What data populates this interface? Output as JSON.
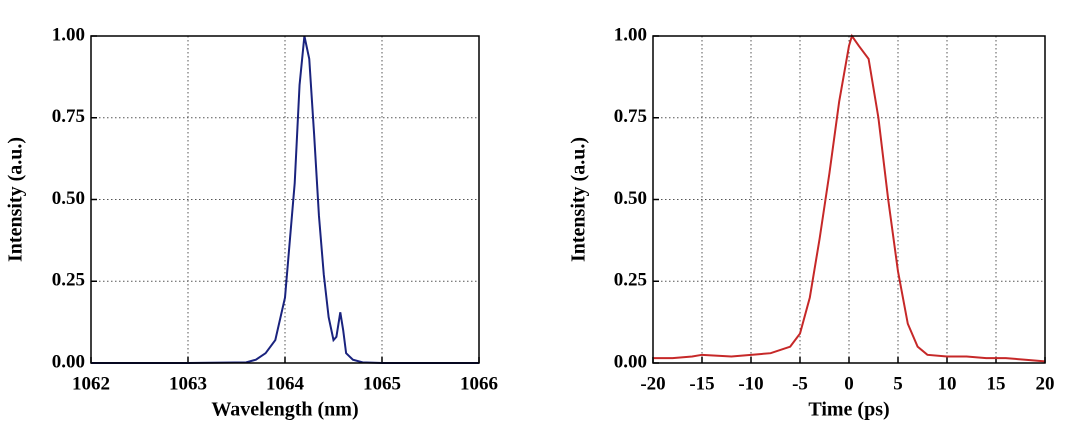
{
  "chart_data": [
    {
      "type": "line",
      "xlabel": "Wavelength (nm)",
      "ylabel": "Intensity (a.u.)",
      "x": [
        1062,
        1063,
        1063.6,
        1063.7,
        1063.8,
        1063.9,
        1064.0,
        1064.1,
        1064.15,
        1064.2,
        1064.25,
        1064.3,
        1064.35,
        1064.4,
        1064.45,
        1064.5,
        1064.53,
        1064.57,
        1064.6,
        1064.63,
        1064.7,
        1064.8,
        1065,
        1066
      ],
      "values": [
        0,
        0,
        0.002,
        0.01,
        0.03,
        0.07,
        0.2,
        0.55,
        0.85,
        1.0,
        0.93,
        0.7,
        0.45,
        0.27,
        0.14,
        0.07,
        0.08,
        0.155,
        0.1,
        0.03,
        0.01,
        0.002,
        0,
        0
      ],
      "color": "#1a237e",
      "xlim": [
        1062,
        1066
      ],
      "xticks": [
        1062,
        1063,
        1064,
        1065,
        1066
      ],
      "ylim": [
        0,
        1
      ],
      "yticks": [
        {
          "value": 0,
          "label": "0.00"
        },
        {
          "value": 0.25,
          "label": "0.25"
        },
        {
          "value": 0.5,
          "label": "0.50"
        },
        {
          "value": 0.75,
          "label": "0.75"
        },
        {
          "value": 1,
          "label": "1.00"
        }
      ],
      "grid": true
    },
    {
      "type": "line",
      "xlabel": "Time (ps)",
      "ylabel": "Intensity (a.u.)",
      "x": [
        -20,
        -18,
        -16,
        -15,
        -12,
        -10,
        -8,
        -6,
        -5,
        -4,
        -3,
        -2,
        -1,
        0,
        0.3,
        1,
        2,
        3,
        4,
        5,
        6,
        7,
        8,
        10,
        12,
        14,
        16,
        18,
        20
      ],
      "values": [
        0.015,
        0.015,
        0.02,
        0.025,
        0.02,
        0.025,
        0.03,
        0.05,
        0.09,
        0.2,
        0.38,
        0.58,
        0.8,
        0.97,
        1.0,
        0.97,
        0.93,
        0.75,
        0.5,
        0.28,
        0.12,
        0.05,
        0.025,
        0.02,
        0.02,
        0.015,
        0.015,
        0.01,
        0.005
      ],
      "color": "#c62828",
      "xlim": [
        -20,
        20
      ],
      "xticks": [
        -20,
        -15,
        -10,
        -5,
        0,
        5,
        10,
        15,
        20
      ],
      "ylim": [
        0,
        1
      ],
      "yticks": [
        {
          "value": 0,
          "label": "0.00"
        },
        {
          "value": 0.25,
          "label": "0.25"
        },
        {
          "value": 0.5,
          "label": "0.50"
        },
        {
          "value": 0.75,
          "label": "0.75"
        },
        {
          "value": 1,
          "label": "1.00"
        }
      ],
      "grid": true
    }
  ]
}
